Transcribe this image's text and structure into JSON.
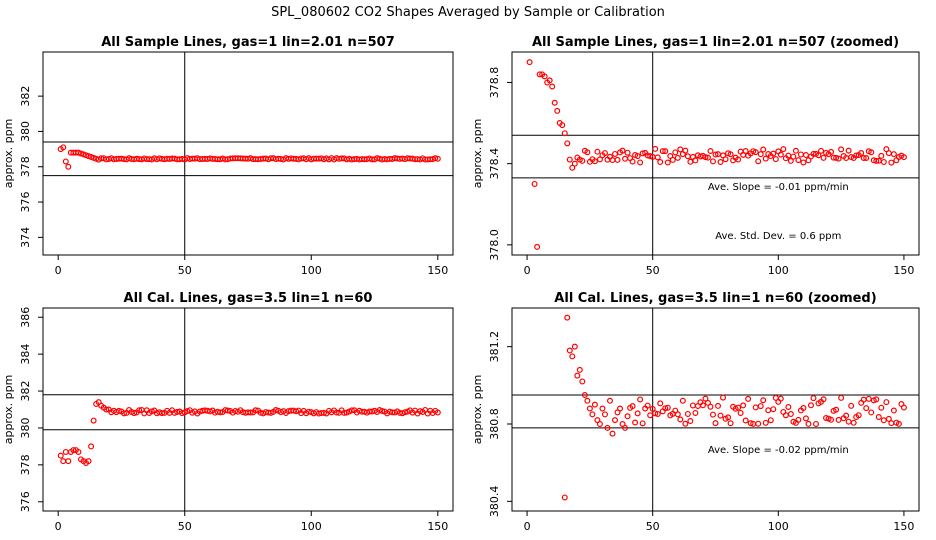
{
  "page_title": "SPL_080602  CO2 Shapes Averaged by Sample or Calibration",
  "colors": {
    "points": "#ff0000",
    "axes": "#000000",
    "background": "#ffffff"
  },
  "chart_data": [
    {
      "type": "scatter",
      "title": "All Sample Lines, gas=1 lin=2.01 n=507",
      "xlabel": "",
      "ylabel": "approx. ppm",
      "xlim": [
        -6,
        156
      ],
      "ylim": [
        373,
        384.5
      ],
      "xticks": [
        "0",
        "50",
        "100",
        "150"
      ],
      "yticks": [
        "374",
        "376",
        "378",
        "380",
        "382"
      ],
      "hlines": [
        377.5,
        379.4
      ],
      "vline": 50,
      "annotations": [],
      "series": [
        {
          "x": [
            1,
            2,
            3,
            4,
            5,
            6,
            7,
            8,
            9,
            10,
            11,
            12,
            13,
            14,
            15,
            16
          ],
          "y": [
            379.0,
            379.1,
            378.3,
            378.0,
            378.8,
            378.8,
            378.8,
            378.8,
            378.75,
            378.7,
            378.65,
            378.6,
            378.55,
            378.5,
            378.45,
            378.4
          ]
        },
        {
          "x_start": 17,
          "x_end": 150,
          "y": 378.45,
          "jitter": 0.04
        }
      ]
    },
    {
      "type": "scatter",
      "title": "All Sample Lines, gas=1 lin=2.01 n=507 (zoomed)",
      "xlabel": "",
      "ylabel": "approx. ppm",
      "xlim": [
        -6,
        156
      ],
      "ylim": [
        377.95,
        378.95
      ],
      "xticks": [
        "0",
        "50",
        "100",
        "150"
      ],
      "yticks": [
        "378.0",
        "378.4",
        "378.8"
      ],
      "hlines": [
        378.54,
        378.33
      ],
      "vline": 50,
      "annotations": [
        "Ave. Slope =  -0.01  ppm/min",
        "Ave. Std. Dev. =  0.6  ppm"
      ],
      "series": [
        {
          "x": [
            1,
            3,
            4,
            5,
            6,
            7,
            8,
            9,
            10,
            11,
            12,
            13,
            14,
            15,
            16,
            17,
            18,
            19,
            20,
            21
          ],
          "y": [
            378.9,
            378.3,
            377.99,
            378.84,
            378.84,
            378.83,
            378.8,
            378.81,
            378.78,
            378.7,
            378.66,
            378.6,
            378.59,
            378.55,
            378.5,
            378.42,
            378.38,
            378.4,
            378.43,
            378.42
          ]
        },
        {
          "x_start": 22,
          "x_end": 150,
          "y": 378.44,
          "jitter": 0.035
        }
      ]
    },
    {
      "type": "scatter",
      "title": "All Cal. Lines, gas=3.5 lin=1 n=60",
      "xlabel": "",
      "ylabel": "approx. ppm",
      "xlim": [
        -6,
        156
      ],
      "ylim": [
        375.5,
        386.5
      ],
      "xticks": [
        "0",
        "50",
        "100",
        "150"
      ],
      "yticks": [
        "376",
        "378",
        "380",
        "382",
        "384",
        "386"
      ],
      "hlines": [
        381.8,
        379.9
      ],
      "vline": 50,
      "annotations": [],
      "series": [
        {
          "x": [
            1,
            2,
            3,
            4,
            5,
            6,
            7,
            8,
            9,
            10,
            11,
            12,
            13,
            14,
            15,
            16,
            17,
            18,
            19,
            20
          ],
          "y": [
            378.5,
            378.2,
            378.7,
            378.2,
            378.7,
            378.8,
            378.8,
            378.7,
            378.3,
            378.2,
            378.1,
            378.2,
            379.0,
            380.4,
            381.3,
            381.4,
            381.2,
            381.1,
            381.0,
            381.0
          ]
        },
        {
          "x_start": 21,
          "x_end": 150,
          "y": 380.88,
          "jitter": 0.1
        }
      ]
    },
    {
      "type": "scatter",
      "title": "All Cal. Lines, gas=3.5 lin=1 n=60 (zoomed)",
      "xlabel": "",
      "ylabel": "approx. ppm",
      "xlim": [
        -6,
        156
      ],
      "ylim": [
        380.35,
        381.4
      ],
      "xticks": [
        "0",
        "50",
        "100",
        "150"
      ],
      "yticks": [
        "380.4",
        "380.8",
        "381.2"
      ],
      "hlines": [
        380.95,
        380.78
      ],
      "vline": 50,
      "annotations": [
        "Ave. Slope =  -0.02  ppm/min"
      ],
      "series": [
        {
          "x": [
            15,
            16,
            17,
            18,
            19,
            20,
            21,
            22,
            23,
            24,
            25,
            26,
            27,
            28,
            29,
            30,
            31,
            32,
            33,
            34,
            35,
            36,
            37,
            38,
            39,
            40
          ],
          "y": [
            380.42,
            381.35,
            381.18,
            381.15,
            381.2,
            381.05,
            381.08,
            381.02,
            380.95,
            380.92,
            380.88,
            380.85,
            380.9,
            380.82,
            380.8,
            380.88,
            380.85,
            380.78,
            380.92,
            380.75,
            380.82,
            380.86,
            380.88,
            380.8,
            380.78,
            380.84
          ]
        },
        {
          "x_start": 41,
          "x_end": 150,
          "y": 380.87,
          "jitter": 0.07
        }
      ]
    }
  ]
}
